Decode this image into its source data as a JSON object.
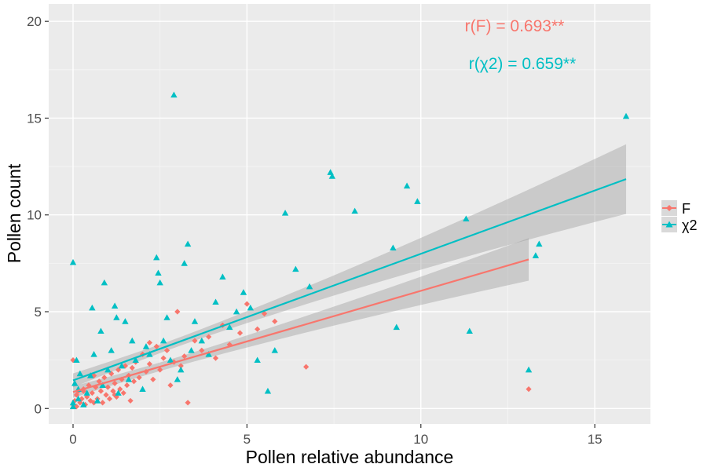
{
  "chart_data": {
    "type": "scatter",
    "xlabel": "Pollen relative abundance",
    "ylabel": "Pollen count",
    "xlim": [
      -0.7,
      16.6
    ],
    "ylim": [
      -0.8,
      20.9
    ],
    "x_ticks": [
      "0",
      "5",
      "10",
      "15"
    ],
    "y_ticks": [
      "0",
      "5",
      "10",
      "15",
      "20"
    ],
    "x_tick_values": [
      0,
      5,
      10,
      15
    ],
    "y_tick_values": [
      0,
      5,
      10,
      15,
      20
    ],
    "grid": true,
    "legend_position": "right",
    "annotations": [
      {
        "text": "r(F) = 0.693**",
        "series": "F",
        "x": 12.5,
        "y": 19.6
      },
      {
        "text": "r(χ2) = 0.659**",
        "series": "χ2",
        "x": 12.5,
        "y": 17.6
      }
    ],
    "series": [
      {
        "name": "F",
        "marker": "diamond",
        "color": "#F8766D",
        "fit": {
          "x": [
            0,
            13.1
          ],
          "y": [
            0.85,
            7.7
          ],
          "ci_upper_end": 8.8,
          "ci_lower_end": 6.6
        },
        "points": [
          [
            0.0,
            2.5
          ],
          [
            0.0,
            0.2
          ],
          [
            0.05,
            0.4
          ],
          [
            0.1,
            0.7
          ],
          [
            0.1,
            0.1
          ],
          [
            0.15,
            0.9
          ],
          [
            0.2,
            0.3
          ],
          [
            0.25,
            0.5
          ],
          [
            0.3,
            1.0
          ],
          [
            0.35,
            0.2
          ],
          [
            0.4,
            0.6
          ],
          [
            0.45,
            1.2
          ],
          [
            0.5,
            0.4
          ],
          [
            0.55,
            0.8
          ],
          [
            0.6,
            0.3
          ],
          [
            0.65,
            1.1
          ],
          [
            0.7,
            0.5
          ],
          [
            0.75,
            1.4
          ],
          [
            0.8,
            0.9
          ],
          [
            0.85,
            0.3
          ],
          [
            0.9,
            1.6
          ],
          [
            0.95,
            0.7
          ],
          [
            1.0,
            1.1
          ],
          [
            1.05,
            0.5
          ],
          [
            1.1,
            1.8
          ],
          [
            1.15,
            0.9
          ],
          [
            1.2,
            1.3
          ],
          [
            1.25,
            0.6
          ],
          [
            1.3,
            2.0
          ],
          [
            1.35,
            1.0
          ],
          [
            1.4,
            1.5
          ],
          [
            1.45,
            0.8
          ],
          [
            1.5,
            2.2
          ],
          [
            1.55,
            1.2
          ],
          [
            1.6,
            1.7
          ],
          [
            1.65,
            0.4
          ],
          [
            1.7,
            2.1
          ],
          [
            1.75,
            1.4
          ],
          [
            1.8,
            2.4
          ],
          [
            1.9,
            1.6
          ],
          [
            2.0,
            2.8
          ],
          [
            2.1,
            1.9
          ],
          [
            2.2,
            2.3
          ],
          [
            2.3,
            1.5
          ],
          [
            2.4,
            3.2
          ],
          [
            2.5,
            2.0
          ],
          [
            2.6,
            2.6
          ],
          [
            2.7,
            3.0
          ],
          [
            2.8,
            1.2
          ],
          [
            2.9,
            2.4
          ],
          [
            3.0,
            5.0
          ],
          [
            3.1,
            2.2
          ],
          [
            3.2,
            2.7
          ],
          [
            3.3,
            0.3
          ],
          [
            3.5,
            3.5
          ],
          [
            3.7,
            3.0
          ],
          [
            3.9,
            3.7
          ],
          [
            4.1,
            2.6
          ],
          [
            4.3,
            4.3
          ],
          [
            4.5,
            3.3
          ],
          [
            4.8,
            3.9
          ],
          [
            5.0,
            5.4
          ],
          [
            5.3,
            4.1
          ],
          [
            5.5,
            4.9
          ],
          [
            5.8,
            4.5
          ],
          [
            6.7,
            2.15
          ],
          [
            2.2,
            3.4
          ],
          [
            1.2,
            0.7
          ],
          [
            0.6,
            1.7
          ],
          [
            0.3,
            0.9
          ],
          [
            13.1,
            1.0
          ]
        ]
      },
      {
        "name": "χ2",
        "marker": "triangle",
        "color": "#00BFC4",
        "fit": {
          "x": [
            0,
            15.9
          ],
          "y": [
            1.45,
            11.85
          ],
          "ci_upper_end": 13.7,
          "ci_lower_end": 10.1
        },
        "points": [
          [
            0.0,
            7.55
          ],
          [
            0.0,
            0.1
          ],
          [
            0.0,
            0.3
          ],
          [
            0.05,
            1.3
          ],
          [
            0.1,
            2.5
          ],
          [
            0.15,
            0.5
          ],
          [
            0.2,
            1.8
          ],
          [
            0.3,
            0.2
          ],
          [
            0.4,
            0.8
          ],
          [
            0.5,
            1.7
          ],
          [
            0.55,
            5.2
          ],
          [
            0.6,
            2.8
          ],
          [
            0.7,
            0.4
          ],
          [
            0.8,
            4.0
          ],
          [
            0.85,
            1.2
          ],
          [
            0.9,
            6.5
          ],
          [
            1.0,
            2.0
          ],
          [
            1.1,
            3.0
          ],
          [
            1.2,
            5.3
          ],
          [
            1.25,
            4.7
          ],
          [
            1.3,
            0.8
          ],
          [
            1.4,
            2.2
          ],
          [
            1.5,
            4.5
          ],
          [
            1.6,
            1.5
          ],
          [
            1.7,
            3.5
          ],
          [
            1.8,
            2.5
          ],
          [
            2.0,
            1.0
          ],
          [
            2.1,
            3.2
          ],
          [
            2.2,
            2.8
          ],
          [
            2.4,
            7.8
          ],
          [
            2.45,
            7.0
          ],
          [
            2.5,
            6.5
          ],
          [
            2.6,
            3.5
          ],
          [
            2.7,
            4.7
          ],
          [
            2.8,
            2.5
          ],
          [
            2.9,
            16.2
          ],
          [
            3.0,
            1.5
          ],
          [
            3.1,
            2.0
          ],
          [
            3.2,
            7.5
          ],
          [
            3.3,
            8.5
          ],
          [
            3.4,
            3.0
          ],
          [
            3.5,
            4.5
          ],
          [
            3.7,
            3.5
          ],
          [
            3.9,
            2.8
          ],
          [
            4.1,
            5.5
          ],
          [
            4.3,
            6.8
          ],
          [
            4.5,
            4.2
          ],
          [
            4.7,
            5.0
          ],
          [
            4.9,
            6.0
          ],
          [
            5.1,
            5.2
          ],
          [
            5.3,
            2.5
          ],
          [
            5.6,
            0.9
          ],
          [
            5.8,
            3.0
          ],
          [
            6.1,
            10.1
          ],
          [
            6.4,
            7.2
          ],
          [
            6.8,
            6.3
          ],
          [
            7.4,
            12.2
          ],
          [
            7.45,
            12.0
          ],
          [
            8.1,
            10.2
          ],
          [
            9.2,
            8.3
          ],
          [
            9.6,
            11.5
          ],
          [
            9.9,
            10.7
          ],
          [
            11.3,
            9.8
          ],
          [
            11.4,
            4.0
          ],
          [
            13.1,
            2.0
          ],
          [
            13.3,
            7.9
          ],
          [
            13.4,
            8.5
          ],
          [
            15.9,
            15.1
          ],
          [
            9.3,
            4.2
          ],
          [
            0.15,
            1.0
          ]
        ]
      }
    ]
  }
}
